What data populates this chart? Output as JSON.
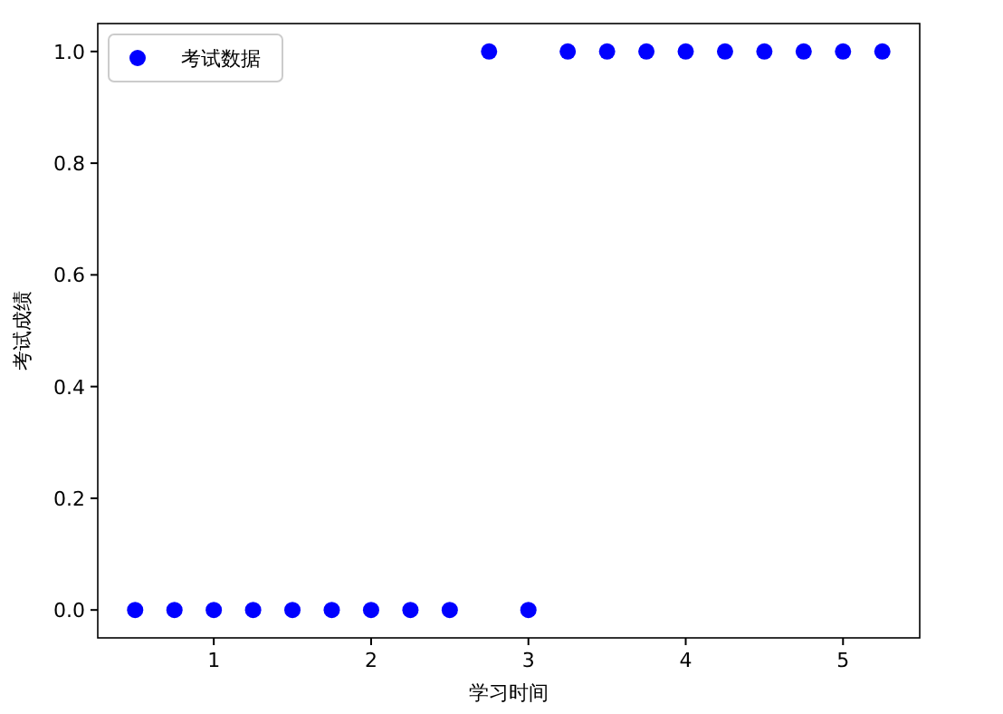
{
  "chart_data": {
    "type": "scatter",
    "xlabel": "学习时间",
    "ylabel": "考试成绩",
    "x": [
      0.5,
      0.75,
      1.0,
      1.25,
      1.5,
      1.75,
      2.0,
      2.25,
      2.5,
      2.75,
      3.0,
      3.25,
      3.5,
      3.75,
      4.0,
      4.25,
      4.5,
      4.75,
      5.0,
      5.25
    ],
    "series": [
      {
        "name": "考试数据",
        "color": "#0000ff",
        "values": [
          0,
          0,
          0,
          0,
          0,
          0,
          0,
          0,
          0,
          1,
          0,
          1,
          1,
          1,
          1,
          1,
          1,
          1,
          1,
          1
        ]
      }
    ],
    "xlim": [
      0.2625,
      5.4875
    ],
    "xticks": [
      1,
      2,
      3,
      4,
      5
    ],
    "ylim": [
      -0.05,
      1.05
    ],
    "yticks": [
      {
        "value": 0,
        "label": "0.0"
      },
      {
        "value": 0.2,
        "label": "0.2"
      },
      {
        "value": 0.4,
        "label": "0.4"
      },
      {
        "value": 0.6,
        "label": "0.6"
      },
      {
        "value": 0.8,
        "label": "0.8"
      },
      {
        "value": 1,
        "label": "1.0"
      }
    ],
    "legend": "top left",
    "marker": "circle",
    "grid": false
  }
}
